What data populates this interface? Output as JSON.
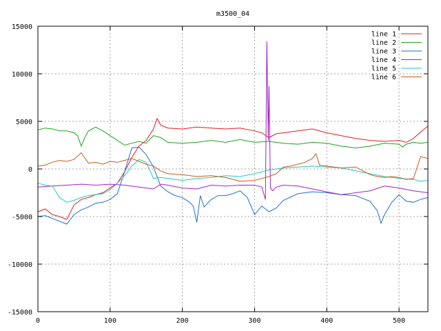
{
  "chart_data": {
    "type": "line",
    "title": "m3500_04",
    "xlabel": "",
    "ylabel": "",
    "xlim": [
      0,
      540
    ],
    "ylim": [
      -15000,
      15000
    ],
    "x_ticks": [
      0,
      100,
      200,
      300,
      400,
      500
    ],
    "y_ticks": [
      -15000,
      -10000,
      -5000,
      0,
      5000,
      10000,
      15000
    ],
    "grid": true,
    "legend_position": "top-right",
    "series": [
      {
        "name": "line 1",
        "color": "#e41a1c",
        "x": [
          0,
          10,
          20,
          30,
          40,
          50,
          60,
          70,
          80,
          90,
          100,
          110,
          120,
          130,
          140,
          150,
          160,
          165,
          170,
          180,
          200,
          220,
          240,
          260,
          280,
          300,
          310,
          320,
          330,
          340,
          360,
          380,
          400,
          420,
          440,
          460,
          480,
          500,
          510,
          520,
          530,
          540
        ],
        "y": [
          -4500,
          -4200,
          -4800,
          -5000,
          -5300,
          -3800,
          -3200,
          -3000,
          -2700,
          -2500,
          -2000,
          -1500,
          -300,
          1200,
          2400,
          3000,
          4200,
          5300,
          4600,
          4300,
          4200,
          4400,
          4300,
          4200,
          4300,
          4000,
          3800,
          3300,
          3700,
          3800,
          4000,
          4200,
          3800,
          3500,
          3200,
          3000,
          2900,
          3000,
          2800,
          3200,
          3900,
          4500
        ]
      },
      {
        "name": "line 2",
        "color": "#1aa31a",
        "x": [
          0,
          10,
          20,
          30,
          40,
          50,
          55,
          60,
          65,
          70,
          80,
          90,
          100,
          110,
          120,
          130,
          140,
          150,
          160,
          170,
          180,
          200,
          220,
          240,
          260,
          280,
          300,
          320,
          340,
          360,
          380,
          400,
          420,
          440,
          460,
          480,
          500,
          505,
          510,
          520,
          530,
          540
        ],
        "y": [
          4100,
          4300,
          4200,
          4000,
          4000,
          3800,
          3500,
          2400,
          3300,
          4000,
          4400,
          4000,
          3500,
          3000,
          2500,
          2700,
          2900,
          2700,
          3500,
          3300,
          2800,
          2700,
          2800,
          3000,
          2800,
          3100,
          2800,
          2900,
          2700,
          2600,
          2800,
          2700,
          2400,
          2200,
          2400,
          2700,
          2600,
          2300,
          2600,
          2800,
          2700,
          2800
        ]
      },
      {
        "name": "line 3",
        "color": "#1a6fd4",
        "x": [
          0,
          10,
          20,
          30,
          40,
          50,
          60,
          70,
          80,
          90,
          100,
          110,
          120,
          130,
          140,
          150,
          160,
          170,
          180,
          190,
          200,
          210,
          215,
          220,
          225,
          230,
          240,
          250,
          260,
          270,
          280,
          290,
          300,
          310,
          320,
          330,
          340,
          360,
          380,
          400,
          420,
          440,
          460,
          470,
          475,
          480,
          490,
          500,
          510,
          520,
          530,
          540
        ],
        "y": [
          -5000,
          -4900,
          -5200,
          -5500,
          -5800,
          -4800,
          -4300,
          -4000,
          -3600,
          -3500,
          -3200,
          -2600,
          -300,
          2200,
          2300,
          1500,
          200,
          -1800,
          -2400,
          -2800,
          -3000,
          -3500,
          -3900,
          -5600,
          -2800,
          -4000,
          -3200,
          -2800,
          -2800,
          -2600,
          -2300,
          -3000,
          -4800,
          -3900,
          -4500,
          -4100,
          -3300,
          -2600,
          -2400,
          -2500,
          -2700,
          -2800,
          -3400,
          -4400,
          -5700,
          -4800,
          -3500,
          -2700,
          -3400,
          -3500,
          -3200,
          -3000
        ]
      },
      {
        "name": "line 4",
        "color": "#a020c8",
        "x": [
          0,
          20,
          40,
          60,
          80,
          100,
          120,
          140,
          150,
          160,
          170,
          180,
          200,
          220,
          240,
          260,
          280,
          300,
          310,
          315,
          317,
          319,
          320,
          322,
          325,
          330,
          340,
          360,
          380,
          400,
          420,
          440,
          460,
          480,
          500,
          520,
          540
        ],
        "y": [
          -1900,
          -1800,
          -1700,
          -1600,
          -1700,
          -1600,
          -1700,
          -1900,
          -2000,
          -2100,
          -1600,
          -1700,
          -2000,
          -2100,
          -1700,
          -1800,
          -1700,
          -1700,
          -1900,
          -3200,
          13400,
          3000,
          8700,
          -2000,
          -2300,
          -1900,
          -1700,
          -1800,
          -2100,
          -2400,
          -2700,
          -2500,
          -2300,
          -1800,
          -2000,
          -2300,
          -2500
        ]
      },
      {
        "name": "line 5",
        "color": "#1ec8c8",
        "x": [
          0,
          10,
          20,
          30,
          40,
          50,
          60,
          70,
          80,
          90,
          100,
          110,
          120,
          130,
          140,
          150,
          160,
          170,
          180,
          200,
          220,
          240,
          260,
          280,
          300,
          320,
          340,
          360,
          380,
          400,
          420,
          440,
          460,
          480,
          500,
          520,
          530,
          540
        ],
        "y": [
          -1500,
          -1700,
          -1800,
          -3000,
          -3500,
          -3300,
          -3000,
          -2800,
          -2700,
          -2600,
          -2200,
          -1500,
          -700,
          300,
          1000,
          700,
          -1000,
          -900,
          -1000,
          -1200,
          -1000,
          -900,
          -700,
          -800,
          -500,
          -100,
          100,
          200,
          300,
          200,
          100,
          -200,
          -500,
          -800,
          -1000,
          -1100,
          -1300,
          -1200
        ]
      },
      {
        "name": "line 6",
        "color": "#c85a14",
        "x": [
          0,
          10,
          20,
          30,
          40,
          50,
          60,
          70,
          80,
          90,
          100,
          110,
          120,
          130,
          140,
          150,
          160,
          170,
          180,
          200,
          220,
          240,
          260,
          280,
          300,
          310,
          320,
          330,
          340,
          350,
          360,
          370,
          380,
          385,
          390,
          400,
          420,
          440,
          450,
          460,
          470,
          480,
          490,
          500,
          510,
          520,
          530,
          540
        ],
        "y": [
          300,
          400,
          700,
          900,
          800,
          1000,
          1700,
          600,
          700,
          500,
          800,
          700,
          900,
          1100,
          800,
          500,
          300,
          -200,
          -500,
          -600,
          -800,
          -700,
          -900,
          -1300,
          -1200,
          -1000,
          -800,
          -500,
          200,
          300,
          500,
          700,
          1100,
          1600,
          400,
          300,
          100,
          200,
          -200,
          -600,
          -800,
          -900,
          -800,
          -900,
          -1100,
          -1000,
          1300,
          1100
        ]
      }
    ]
  }
}
